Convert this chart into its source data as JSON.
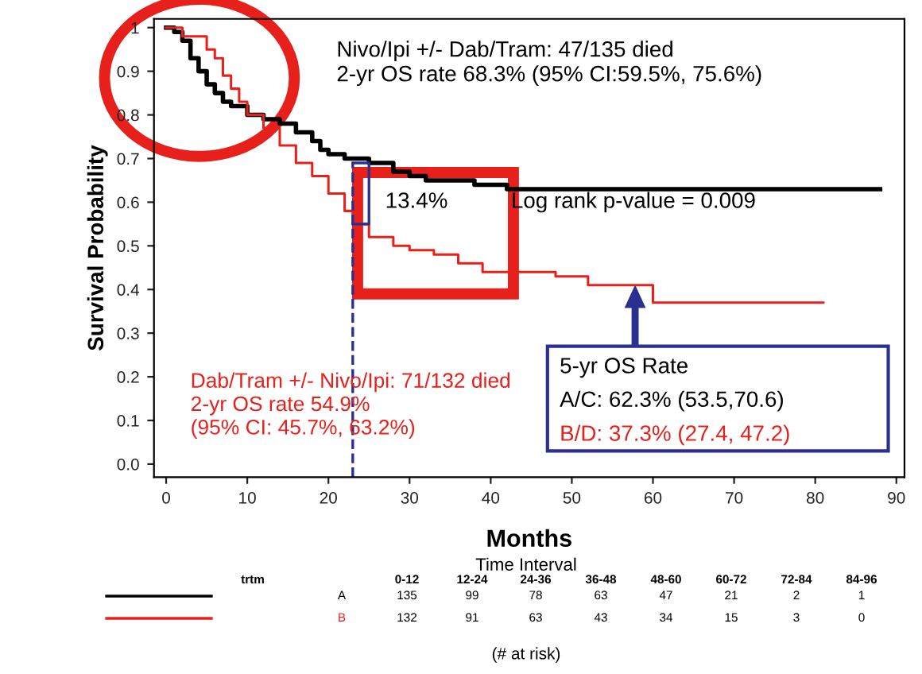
{
  "chart_data": {
    "type": "step",
    "xlabel": "Months",
    "ylabel": "Survival Probability",
    "xlim": [
      -1.5,
      91
    ],
    "ylim": [
      -0.03,
      1.02
    ],
    "xticks": [
      0,
      10,
      20,
      30,
      40,
      50,
      60,
      70,
      80,
      90
    ],
    "yticks": [
      {
        "value": 0,
        "label": "0.0"
      },
      {
        "value": 0.1,
        "label": "0.1"
      },
      {
        "value": 0.2,
        "label": "0.2"
      },
      {
        "value": 0.3,
        "label": "0.3"
      },
      {
        "value": 0.4,
        "label": "0.4"
      },
      {
        "value": 0.5,
        "label": "0.5"
      },
      {
        "value": 0.6,
        "label": "0.6"
      },
      {
        "value": 0.7,
        "label": "0.7"
      },
      {
        "value": 0.8,
        "label": "0.8"
      },
      {
        "value": 0.9,
        "label": "0.9"
      },
      {
        "value": 1,
        "label": "1"
      }
    ],
    "grid": false,
    "marker": "none",
    "line_style": "solid",
    "series": [
      {
        "name": "A",
        "color": "#000000",
        "x": [
          0,
          1,
          2,
          3,
          4,
          5,
          6,
          7,
          8,
          10,
          12,
          14,
          16,
          18,
          19,
          20,
          22,
          25,
          28,
          30,
          32,
          38,
          42,
          88
        ],
        "values": [
          1,
          0.99,
          0.97,
          0.93,
          0.9,
          0.87,
          0.85,
          0.83,
          0.82,
          0.8,
          0.79,
          0.78,
          0.76,
          0.74,
          0.72,
          0.71,
          0.7,
          0.69,
          0.67,
          0.66,
          0.65,
          0.64,
          0.63,
          0.63
        ]
      },
      {
        "name": "B",
        "color": "#e8201c",
        "x": [
          0,
          2,
          5,
          6,
          7,
          8,
          9,
          10,
          12,
          14,
          16,
          18,
          20,
          22,
          23,
          25,
          28,
          30,
          33,
          36,
          39,
          48,
          52,
          59,
          60,
          81
        ],
        "values": [
          1,
          0.98,
          0.95,
          0.93,
          0.89,
          0.86,
          0.83,
          0.8,
          0.77,
          0.73,
          0.69,
          0.66,
          0.62,
          0.58,
          0.55,
          0.52,
          0.5,
          0.49,
          0.48,
          0.46,
          0.44,
          0.43,
          0.41,
          0.41,
          0.37,
          0.37
        ]
      }
    ],
    "ref_lines": [
      {
        "axis": "x",
        "value": 23,
        "color": "#2b2f8f",
        "line_style": "dashed"
      }
    ],
    "annotations": [
      "Nivo/Ipi +/- Dab/Tram: 47/135 died\n2-yr OS rate 68.3% (95% CI:59.5%, 75.6%)",
      "Dab/Tram +/- Nivo/Ipi: 71/132 died\n2-yr OS rate 54.9%\n(95% CI: 45.7%, 63.2%)",
      {
        "text": "13.4%",
        "x": 23,
        "y": 0.62
      },
      "Log rank p-value = 0.009",
      "5-yr OS Rate",
      "A/C: 62.3% (53.5,70.6)",
      "B/D: 37.3% (27.4, 47.2)",
      "Time Interval",
      "trtm",
      "0-12 12-24 24-36 36-48 48-60 60-72 72-84 84-96",
      "135 99 78 63 47 21 2 1",
      "132 91 63 43 34 15 3 0",
      "(# at risk)"
    ]
  }
}
